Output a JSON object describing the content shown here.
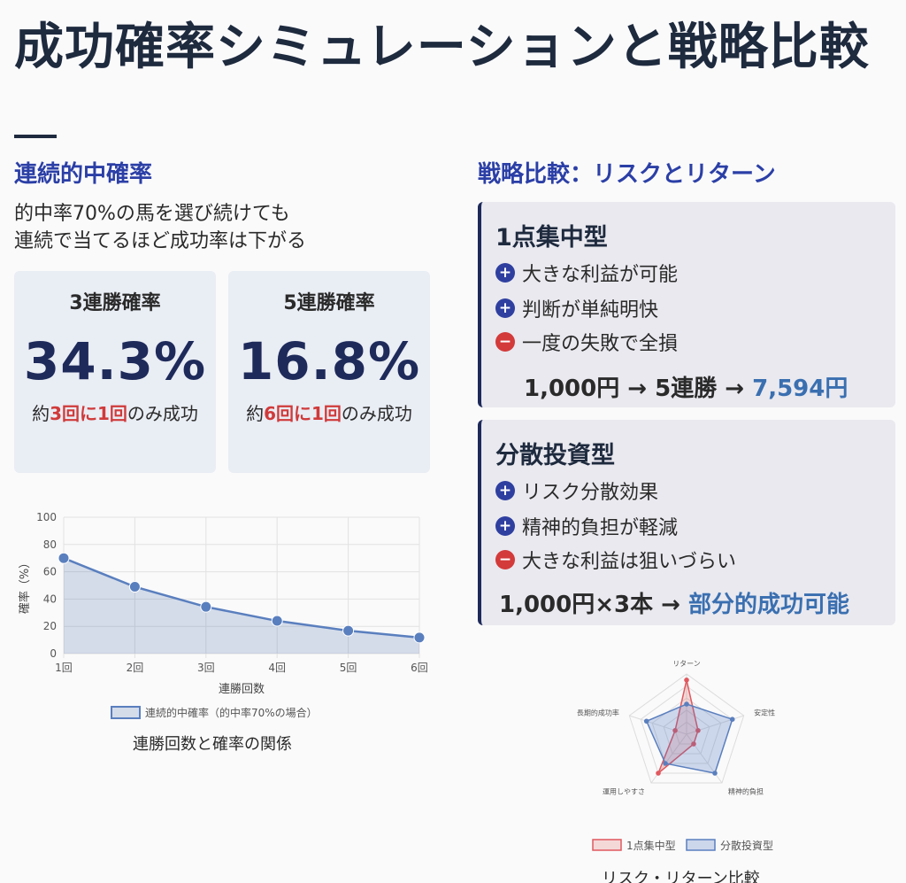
{
  "page": {
    "title": "成功確率シミュレーションと戦略比較"
  },
  "left": {
    "heading": "連続的中確率",
    "intro_line1": "的中率70%の馬を選び続けても",
    "intro_line2": "連続で当てるほど成功率は下がる",
    "cards": [
      {
        "title": "3連勝確率",
        "value": "34.3%",
        "note_pre": "約",
        "note_hl": "3回に1回",
        "note_post": "のみ成功"
      },
      {
        "title": "5連勝確率",
        "value": "16.8%",
        "note_pre": "約",
        "note_hl": "6回に1回",
        "note_post": "のみ成功"
      }
    ],
    "chart_caption": "連勝回数と確率の関係"
  },
  "right": {
    "heading": "戦略比較：リスクとリターン",
    "strategies": [
      {
        "title": "1点集中型",
        "points": [
          {
            "sign": "+",
            "text": "大きな利益が可能"
          },
          {
            "sign": "+",
            "text": "判断が単純明快"
          },
          {
            "sign": "−",
            "text": "一度の失敗で全損"
          }
        ],
        "result_pre": "1,000円 → 5連勝 → ",
        "result_accent": "7,594円"
      },
      {
        "title": "分散投資型",
        "points": [
          {
            "sign": "+",
            "text": "リスク分散効果"
          },
          {
            "sign": "+",
            "text": "精神的負担が軽減"
          },
          {
            "sign": "−",
            "text": "大きな利益は狙いづらい"
          }
        ],
        "result_pre": "1,000円×3本 → ",
        "result_accent": "部分的成功可能"
      }
    ],
    "radar_caption": "リスク・リターン比較"
  },
  "colors": {
    "accent": "#3a6fb0",
    "negative": "#d33a3a",
    "heading": "#2b3fa6"
  },
  "chart_data": [
    {
      "type": "area",
      "categories": [
        "1回",
        "2回",
        "3回",
        "4回",
        "5回",
        "6回"
      ],
      "series": [
        {
          "name": "連続的中確率（的中率70%の場合）",
          "values": [
            70,
            49,
            34.3,
            24,
            16.8,
            11.8
          ]
        }
      ],
      "xlabel": "連勝回数",
      "ylabel": "確率（%）",
      "ylim": [
        0,
        100
      ],
      "yticks": [
        0,
        20,
        40,
        60,
        80,
        100
      ],
      "grid": true,
      "legend": "bottom"
    },
    {
      "type": "radar",
      "categories": [
        "リターン",
        "安定性",
        "精神的負担",
        "運用しやすさ",
        "長期的成功率"
      ],
      "max": 5,
      "series": [
        {
          "name": "1点集中型",
          "values": [
            4.5,
            1,
            1,
            4,
            1
          ]
        },
        {
          "name": "分散投資型",
          "values": [
            2.5,
            4,
            4,
            3,
            3.5
          ]
        }
      ],
      "legend": "bottom"
    }
  ]
}
